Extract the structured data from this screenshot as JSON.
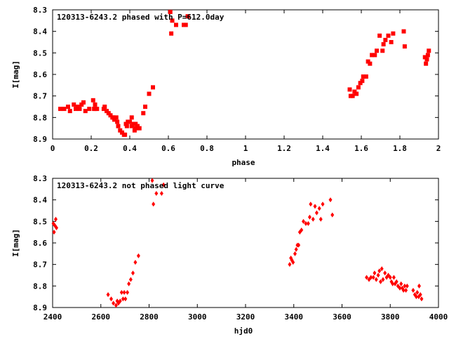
{
  "colors": {
    "marker": "#ff0000",
    "frame": "#000000",
    "background": "#ffffff"
  },
  "chart_data": [
    {
      "type": "scatter",
      "title": "120313-6243.2 phased with P=612.0day",
      "xlabel": "phase",
      "ylabel": "I[mag]",
      "xlim": [
        0,
        2
      ],
      "ylim": [
        8.3,
        8.9
      ],
      "y_inverted": true,
      "grid": false,
      "marker": "filled-square",
      "xticks": [
        0,
        0.2,
        0.4,
        0.6,
        0.8,
        1,
        1.2,
        1.4,
        1.6,
        1.8,
        2
      ],
      "xtick_labels": [
        "0",
        "0.2",
        "0.4",
        "0.6",
        "0.8",
        "1",
        "1.2",
        "1.4",
        "1.6",
        "1.8",
        "2"
      ],
      "yticks": [
        8.3,
        8.4,
        8.5,
        8.6,
        8.7,
        8.8,
        8.9
      ],
      "ytick_labels": [
        "8.3",
        "8.4",
        "8.5",
        "8.6",
        "8.7",
        "8.8",
        "8.9"
      ],
      "series": [
        {
          "points": [
            [
              0.04,
              8.76
            ],
            [
              0.06,
              8.76
            ],
            [
              0.08,
              8.75
            ],
            [
              0.09,
              8.77
            ],
            [
              0.11,
              8.74
            ],
            [
              0.12,
              8.76
            ],
            [
              0.13,
              8.75
            ],
            [
              0.14,
              8.76
            ],
            [
              0.15,
              8.74
            ],
            [
              0.16,
              8.73
            ],
            [
              0.17,
              8.77
            ],
            [
              0.19,
              8.76
            ],
            [
              0.21,
              8.72
            ],
            [
              0.22,
              8.74
            ],
            [
              0.215,
              8.76
            ],
            [
              0.22,
              8.76
            ],
            [
              0.23,
              8.76
            ],
            [
              0.265,
              8.76
            ],
            [
              0.27,
              8.75
            ],
            [
              0.28,
              8.77
            ],
            [
              0.29,
              8.78
            ],
            [
              0.3,
              8.79
            ],
            [
              0.31,
              8.8
            ],
            [
              0.315,
              8.8
            ],
            [
              0.32,
              8.81
            ],
            [
              0.33,
              8.8
            ],
            [
              0.335,
              8.82
            ],
            [
              0.34,
              8.84
            ],
            [
              0.35,
              8.86
            ],
            [
              0.36,
              8.87
            ],
            [
              0.37,
              8.88
            ],
            [
              0.375,
              8.88
            ],
            [
              0.38,
              8.83
            ],
            [
              0.385,
              8.84
            ],
            [
              0.39,
              8.82
            ],
            [
              0.4,
              8.82
            ],
            [
              0.41,
              8.8
            ],
            [
              0.41,
              8.84
            ],
            [
              0.42,
              8.83
            ],
            [
              0.425,
              8.86
            ],
            [
              0.43,
              8.85
            ],
            [
              0.43,
              8.83
            ],
            [
              0.44,
              8.84
            ],
            [
              0.45,
              8.85
            ],
            [
              0.47,
              8.78
            ],
            [
              0.48,
              8.75
            ],
            [
              0.5,
              8.69
            ],
            [
              0.52,
              8.66
            ],
            [
              0.61,
              8.31
            ],
            [
              0.615,
              8.41
            ],
            [
              0.62,
              8.35
            ],
            [
              0.64,
              8.37
            ],
            [
              0.68,
              8.37
            ],
            [
              0.69,
              8.37
            ],
            [
              0.7,
              8.33
            ],
            [
              1.54,
              8.67
            ],
            [
              1.545,
              8.7
            ],
            [
              1.555,
              8.7
            ],
            [
              1.565,
              8.68
            ],
            [
              1.575,
              8.69
            ],
            [
              1.585,
              8.66
            ],
            [
              1.595,
              8.64
            ],
            [
              1.605,
              8.63
            ],
            [
              1.61,
              8.61
            ],
            [
              1.625,
              8.61
            ],
            [
              1.635,
              8.54
            ],
            [
              1.645,
              8.55
            ],
            [
              1.655,
              8.51
            ],
            [
              1.67,
              8.51
            ],
            [
              1.68,
              8.49
            ],
            [
              1.695,
              8.42
            ],
            [
              1.71,
              8.49
            ],
            [
              1.715,
              8.46
            ],
            [
              1.725,
              8.44
            ],
            [
              1.74,
              8.42
            ],
            [
              1.755,
              8.45
            ],
            [
              1.765,
              8.41
            ],
            [
              1.82,
              8.4
            ],
            [
              1.825,
              8.47
            ],
            [
              1.93,
              8.52
            ],
            [
              1.935,
              8.55
            ],
            [
              1.94,
              8.53
            ],
            [
              1.945,
              8.51
            ],
            [
              1.95,
              8.49
            ]
          ]
        }
      ]
    },
    {
      "type": "scatter",
      "title": "120313-6243.2 not phased light curve",
      "xlabel": "hjd0",
      "ylabel": "I[mag]",
      "xlim": [
        2400,
        4000
      ],
      "ylim": [
        8.3,
        8.9
      ],
      "y_inverted": true,
      "grid": false,
      "marker": "filled-diamond",
      "xticks": [
        2400,
        2600,
        2800,
        3000,
        3200,
        3400,
        3600,
        3800,
        4000
      ],
      "xtick_labels": [
        "2400",
        "2600",
        "2800",
        "3000",
        "3200",
        "3400",
        "3600",
        "3800",
        "4000"
      ],
      "yticks": [
        8.3,
        8.4,
        8.5,
        8.6,
        8.7,
        8.8,
        8.9
      ],
      "ytick_labels": [
        "8.3",
        "8.4",
        "8.5",
        "8.6",
        "8.7",
        "8.8",
        "8.9"
      ],
      "series": [
        {
          "points": [
            [
              2403,
              8.51
            ],
            [
              2406,
              8.55
            ],
            [
              2410,
              8.52
            ],
            [
              2413,
              8.49
            ],
            [
              2416,
              8.53
            ],
            [
              2630,
              8.84
            ],
            [
              2643,
              8.86
            ],
            [
              2652,
              8.88
            ],
            [
              2663,
              8.89
            ],
            [
              2668,
              8.87
            ],
            [
              2673,
              8.88
            ],
            [
              2680,
              8.87
            ],
            [
              2686,
              8.83
            ],
            [
              2692,
              8.86
            ],
            [
              2697,
              8.83
            ],
            [
              2702,
              8.86
            ],
            [
              2710,
              8.83
            ],
            [
              2716,
              8.79
            ],
            [
              2724,
              8.77
            ],
            [
              2733,
              8.74
            ],
            [
              2743,
              8.69
            ],
            [
              2756,
              8.66
            ],
            [
              2813,
              8.31
            ],
            [
              2818,
              8.42
            ],
            [
              2830,
              8.37
            ],
            [
              2852,
              8.37
            ],
            [
              2860,
              8.33
            ],
            [
              3383,
              8.7
            ],
            [
              3388,
              8.67
            ],
            [
              3392,
              8.68
            ],
            [
              3397,
              8.69
            ],
            [
              3405,
              8.65
            ],
            [
              3410,
              8.63
            ],
            [
              3415,
              8.61
            ],
            [
              3420,
              8.61
            ],
            [
              3425,
              8.55
            ],
            [
              3432,
              8.54
            ],
            [
              3440,
              8.5
            ],
            [
              3450,
              8.51
            ],
            [
              3460,
              8.51
            ],
            [
              3466,
              8.48
            ],
            [
              3470,
              8.42
            ],
            [
              3480,
              8.49
            ],
            [
              3488,
              8.43
            ],
            [
              3495,
              8.46
            ],
            [
              3506,
              8.44
            ],
            [
              3512,
              8.49
            ],
            [
              3520,
              8.42
            ],
            [
              3552,
              8.4
            ],
            [
              3560,
              8.47
            ],
            [
              3702,
              8.76
            ],
            [
              3712,
              8.77
            ],
            [
              3720,
              8.76
            ],
            [
              3730,
              8.76
            ],
            [
              3735,
              8.74
            ],
            [
              3742,
              8.77
            ],
            [
              3750,
              8.75
            ],
            [
              3755,
              8.73
            ],
            [
              3760,
              8.78
            ],
            [
              3765,
              8.72
            ],
            [
              3770,
              8.77
            ],
            [
              3778,
              8.74
            ],
            [
              3785,
              8.76
            ],
            [
              3792,
              8.75
            ],
            [
              3800,
              8.76
            ],
            [
              3805,
              8.78
            ],
            [
              3810,
              8.79
            ],
            [
              3815,
              8.76
            ],
            [
              3820,
              8.79
            ],
            [
              3826,
              8.78
            ],
            [
              3832,
              8.8
            ],
            [
              3840,
              8.81
            ],
            [
              3845,
              8.79
            ],
            [
              3850,
              8.81
            ],
            [
              3855,
              8.82
            ],
            [
              3860,
              8.8
            ],
            [
              3865,
              8.82
            ],
            [
              3870,
              8.8
            ],
            [
              3895,
              8.82
            ],
            [
              3902,
              8.84
            ],
            [
              3908,
              8.85
            ],
            [
              3912,
              8.83
            ],
            [
              3918,
              8.85
            ],
            [
              3920,
              8.8
            ],
            [
              3925,
              8.84
            ],
            [
              3930,
              8.86
            ]
          ]
        }
      ]
    }
  ]
}
